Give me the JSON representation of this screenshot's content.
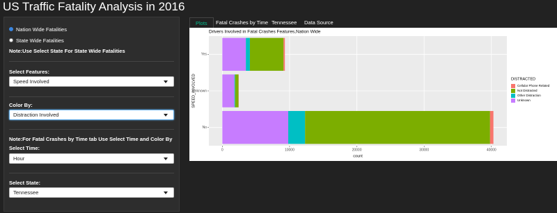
{
  "header": {
    "title": "US Traffic Fatality Analysis in 2016"
  },
  "sidebar": {
    "radios": [
      {
        "label": "Nation Wide Fatalities",
        "checked": true
      },
      {
        "label": "State Wide Fatalities",
        "checked": false
      }
    ],
    "note1": "Note:Use Select State For State Wide Fatalities",
    "features": {
      "label": "Select Features:",
      "value": "Speed Involved"
    },
    "color_by": {
      "label": "Color By:",
      "value": "Distraction Involved"
    },
    "note2": "Note:For Fatal Crashes by Time tab Use Select Time and Color By",
    "time": {
      "label": "Select Time:",
      "value": "Hour"
    },
    "state": {
      "label": "Select State:",
      "value": "Tennessee"
    }
  },
  "tabs": [
    {
      "label": "Plots",
      "active": true
    },
    {
      "label": "Fatal Crashes by Time",
      "active": false
    },
    {
      "label": "Tennessee",
      "active": false
    },
    {
      "label": "Data Source",
      "active": false
    }
  ],
  "chart_data": {
    "type": "bar",
    "orientation": "horizontal",
    "stacked": true,
    "title": "Drivers Involved in Fatal Crashes Features,Nation Wide",
    "x_label": "count",
    "y_label": "SPEED_INVOLVED",
    "legend_title": "DISTRACTED",
    "legend": "right",
    "grid": true,
    "categories": [
      "No",
      "Unknown",
      "Yes"
    ],
    "series": [
      {
        "name": "Cellular Phone Related",
        "color": "#F8766D",
        "values": [
          500,
          30,
          200
        ]
      },
      {
        "name": "Not Distracted",
        "color": "#7CAE00",
        "values": [
          27500,
          500,
          5000
        ]
      },
      {
        "name": "Other Distraction",
        "color": "#00BFC4",
        "values": [
          2500,
          100,
          600
        ]
      },
      {
        "name": "Unknown",
        "color": "#C77CFF",
        "values": [
          9800,
          1800,
          3500
        ]
      }
    ],
    "xlim": [
      -2000,
      42300
    ],
    "xticks": [
      0,
      10000,
      20000,
      30000,
      40000
    ]
  }
}
